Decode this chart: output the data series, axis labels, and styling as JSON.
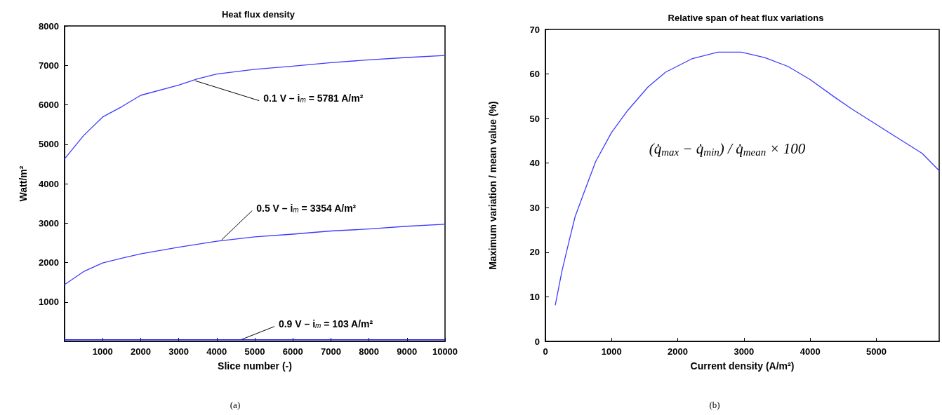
{
  "chart_data": [
    {
      "type": "line",
      "title": "Heat flux density",
      "xlabel": "Slice number (-)",
      "ylabel": "Watt/m²",
      "xlim": [
        0,
        10000
      ],
      "xticks": [
        1000,
        2000,
        3000,
        4000,
        5000,
        6000,
        7000,
        8000,
        9000,
        10000
      ],
      "ylim": [
        0,
        8000
      ],
      "yticks": [
        1000,
        2000,
        3000,
        4000,
        5000,
        6000,
        7000,
        8000
      ],
      "grid": false,
      "series": [
        {
          "color": "#3c3cff",
          "x": [
            0,
            500,
            1000,
            1500,
            2000,
            3000,
            3500,
            4000,
            5000,
            6000,
            7000,
            8000,
            9000,
            10000
          ],
          "values": [
            4630,
            5220,
            5690,
            5950,
            6240,
            6500,
            6660,
            6780,
            6900,
            6980,
            7070,
            7140,
            7200,
            7250
          ]
        },
        {
          "color": "#3c3cff",
          "x": [
            0,
            500,
            1000,
            1500,
            2000,
            3000,
            4000,
            5000,
            6000,
            7000,
            8000,
            9000,
            10000
          ],
          "values": [
            1440,
            1770,
            1990,
            2110,
            2220,
            2390,
            2540,
            2650,
            2720,
            2800,
            2850,
            2920,
            2970
          ]
        },
        {
          "color": "#1a1ae6",
          "x": [
            0,
            10000
          ],
          "values": [
            40,
            40
          ]
        }
      ],
      "annotations": [
        {
          "text": "0.1 V – i$_{m}$ = 5781 A/m²",
          "x": 3400,
          "y": 6620
        },
        {
          "text": "0.5 V – i$_{m}$ = 3354 A/m²",
          "x": 4100,
          "y": 2550
        },
        {
          "text": "0.9 V – i$_{m}$ = 103 A/m²",
          "x": 4630,
          "y": 40
        },
        "(a)"
      ]
    },
    {
      "type": "line",
      "title": "Relative span of heat flux variations",
      "xlabel": "Current density (A/m²)",
      "ylabel": "Maximum variation / mean value (%)",
      "xlim": [
        0,
        5950
      ],
      "xticks": [
        0,
        1000,
        2000,
        3000,
        4000,
        5000
      ],
      "ylim": [
        0,
        70
      ],
      "yticks": [
        0,
        10,
        20,
        30,
        40,
        50,
        60,
        70
      ],
      "grid": false,
      "series": [
        {
          "color": "#3c3cff",
          "x": [
            150,
            250,
            361,
            449,
            581,
            758,
            1000,
            1242,
            1551,
            1815,
            2211,
            2608,
            2960,
            3313,
            3665,
            3996,
            4370,
            4634,
            4987,
            5339,
            5692,
            5950
          ],
          "values": [
            8.2,
            15.8,
            22.7,
            28,
            33.3,
            40.3,
            46.9,
            51.8,
            57.1,
            60.4,
            63.4,
            64.9,
            64.9,
            63.7,
            61.7,
            58.8,
            54.8,
            52.1,
            48.8,
            45.5,
            42.2,
            38.3
          ]
        }
      ],
      "annotations": [
        "(q̇$_{max}$ − q̇$_{min}$) / q̇$_{mean}$ × 100",
        "(b)"
      ]
    }
  ]
}
